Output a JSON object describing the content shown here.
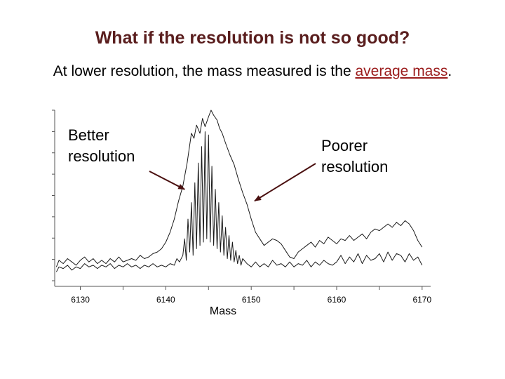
{
  "slide": {
    "title": "What if the resolution is not so good?",
    "subtitle_prefix": "At lower resolution, the mass measured is the ",
    "subtitle_link": "average mass",
    "subtitle_suffix": "."
  },
  "chart_data": {
    "type": "line",
    "xlabel": "Mass",
    "ylabel": "",
    "xlim": [
      6127,
      6171
    ],
    "ylim": [
      0,
      1
    ],
    "x_ticks": [
      "6130",
      "6140",
      "6150",
      "6160",
      "6170"
    ],
    "grid": false,
    "series": [
      {
        "name": "Poorer resolution",
        "x": [
          6127.2,
          6127.5,
          6128,
          6128.5,
          6129,
          6129.5,
          6130,
          6130.5,
          6131,
          6131.5,
          6132,
          6132.5,
          6133,
          6133.5,
          6134,
          6134.5,
          6135,
          6135.5,
          6136,
          6136.5,
          6137,
          6137.5,
          6138,
          6138.5,
          6139,
          6139.5,
          6140,
          6140.5,
          6141,
          6141.5,
          6142,
          6142.5,
          6143,
          6143.3,
          6143.6,
          6144,
          6144.3,
          6144.6,
          6145,
          6145.3,
          6145.6,
          6146,
          6146.3,
          6146.6,
          6147,
          6147.5,
          6148,
          6148.5,
          6149,
          6149.5,
          6150,
          6150.5,
          6151,
          6151.5,
          6152,
          6152.5,
          6153,
          6153.5,
          6154,
          6154.5,
          6155,
          6155.5,
          6156,
          6156.5,
          6157,
          6157.5,
          6158,
          6158.5,
          6159,
          6159.5,
          6160,
          6160.5,
          6161,
          6161.5,
          6162,
          6162.5,
          6163,
          6163.5,
          6164,
          6164.5,
          6165,
          6165.5,
          6166,
          6166.5,
          6167,
          6167.5,
          6168,
          6168.5,
          6169,
          6169.5,
          6170
        ],
        "y": [
          0.05,
          0.09,
          0.07,
          0.1,
          0.08,
          0.06,
          0.09,
          0.11,
          0.08,
          0.1,
          0.07,
          0.09,
          0.07,
          0.1,
          0.08,
          0.11,
          0.08,
          0.09,
          0.1,
          0.09,
          0.12,
          0.1,
          0.11,
          0.13,
          0.14,
          0.16,
          0.2,
          0.26,
          0.34,
          0.45,
          0.54,
          0.68,
          0.86,
          0.83,
          0.91,
          0.86,
          0.95,
          0.9,
          0.96,
          1.0,
          0.97,
          0.94,
          0.89,
          0.86,
          0.8,
          0.73,
          0.67,
          0.58,
          0.5,
          0.43,
          0.34,
          0.26,
          0.22,
          0.18,
          0.2,
          0.22,
          0.21,
          0.19,
          0.15,
          0.11,
          0.1,
          0.14,
          0.16,
          0.18,
          0.2,
          0.17,
          0.21,
          0.19,
          0.23,
          0.21,
          0.19,
          0.22,
          0.21,
          0.24,
          0.21,
          0.23,
          0.25,
          0.22,
          0.26,
          0.28,
          0.27,
          0.29,
          0.31,
          0.29,
          0.32,
          0.3,
          0.33,
          0.31,
          0.27,
          0.21,
          0.17
        ]
      },
      {
        "name": "Better resolution",
        "x": [
          6127.2,
          6127.5,
          6128,
          6128.5,
          6129,
          6129.5,
          6130,
          6130.5,
          6131,
          6131.5,
          6132,
          6132.5,
          6133,
          6133.5,
          6134,
          6134.5,
          6135,
          6135.5,
          6136,
          6136.5,
          6137,
          6137.5,
          6138,
          6138.5,
          6139,
          6139.5,
          6140,
          6140.5,
          6141,
          6141.3,
          6141.6,
          6142,
          6142.2,
          6142.4,
          6142.6,
          6142.8,
          6143,
          6143.2,
          6143.4,
          6143.6,
          6143.8,
          6144,
          6144.2,
          6144.4,
          6144.6,
          6144.8,
          6145,
          6145.2,
          6145.4,
          6145.6,
          6145.8,
          6146,
          6146.2,
          6146.4,
          6146.6,
          6146.8,
          6147,
          6147.2,
          6147.4,
          6147.6,
          6147.8,
          6148,
          6148.2,
          6148.4,
          6148.6,
          6148.8,
          6149,
          6149.5,
          6150,
          6150.5,
          6151,
          6151.5,
          6152,
          6152.5,
          6153,
          6153.5,
          6154,
          6154.5,
          6155,
          6155.5,
          6156,
          6156.5,
          6157,
          6157.5,
          6158,
          6158.5,
          6159,
          6159.5,
          6160,
          6160.5,
          6161,
          6161.5,
          6162,
          6162.5,
          6163,
          6163.5,
          6164,
          6164.5,
          6165,
          6165.5,
          6166,
          6166.5,
          6167,
          6167.5,
          6168,
          6168.5,
          6169,
          6169.5,
          6170
        ],
        "y": [
          0.02,
          0.05,
          0.04,
          0.06,
          0.03,
          0.05,
          0.04,
          0.07,
          0.05,
          0.06,
          0.04,
          0.06,
          0.05,
          0.07,
          0.04,
          0.06,
          0.05,
          0.07,
          0.05,
          0.06,
          0.04,
          0.06,
          0.05,
          0.07,
          0.05,
          0.06,
          0.05,
          0.07,
          0.06,
          0.1,
          0.08,
          0.12,
          0.22,
          0.09,
          0.34,
          0.14,
          0.44,
          0.12,
          0.56,
          0.16,
          0.68,
          0.18,
          0.78,
          0.2,
          0.87,
          0.22,
          0.85,
          0.2,
          0.66,
          0.18,
          0.52,
          0.16,
          0.44,
          0.14,
          0.36,
          0.12,
          0.29,
          0.1,
          0.24,
          0.09,
          0.2,
          0.08,
          0.15,
          0.07,
          0.12,
          0.06,
          0.1,
          0.07,
          0.05,
          0.08,
          0.05,
          0.07,
          0.05,
          0.09,
          0.06,
          0.07,
          0.05,
          0.08,
          0.05,
          0.07,
          0.06,
          0.09,
          0.05,
          0.08,
          0.06,
          0.09,
          0.07,
          0.06,
          0.08,
          0.12,
          0.07,
          0.11,
          0.08,
          0.13,
          0.07,
          0.12,
          0.09,
          0.1,
          0.13,
          0.08,
          0.14,
          0.09,
          0.13,
          0.12,
          0.08,
          0.13,
          0.09,
          0.11,
          0.06
        ]
      }
    ],
    "annotations": [
      {
        "label_line1": "Better",
        "label_line2": "resolution",
        "points_to": {
          "x": 6142.2,
          "y": 0.52
        }
      },
      {
        "label_line1": "Poorer",
        "label_line2": "resolution",
        "points_to": {
          "x": 6150.4,
          "y": 0.45
        }
      }
    ]
  }
}
